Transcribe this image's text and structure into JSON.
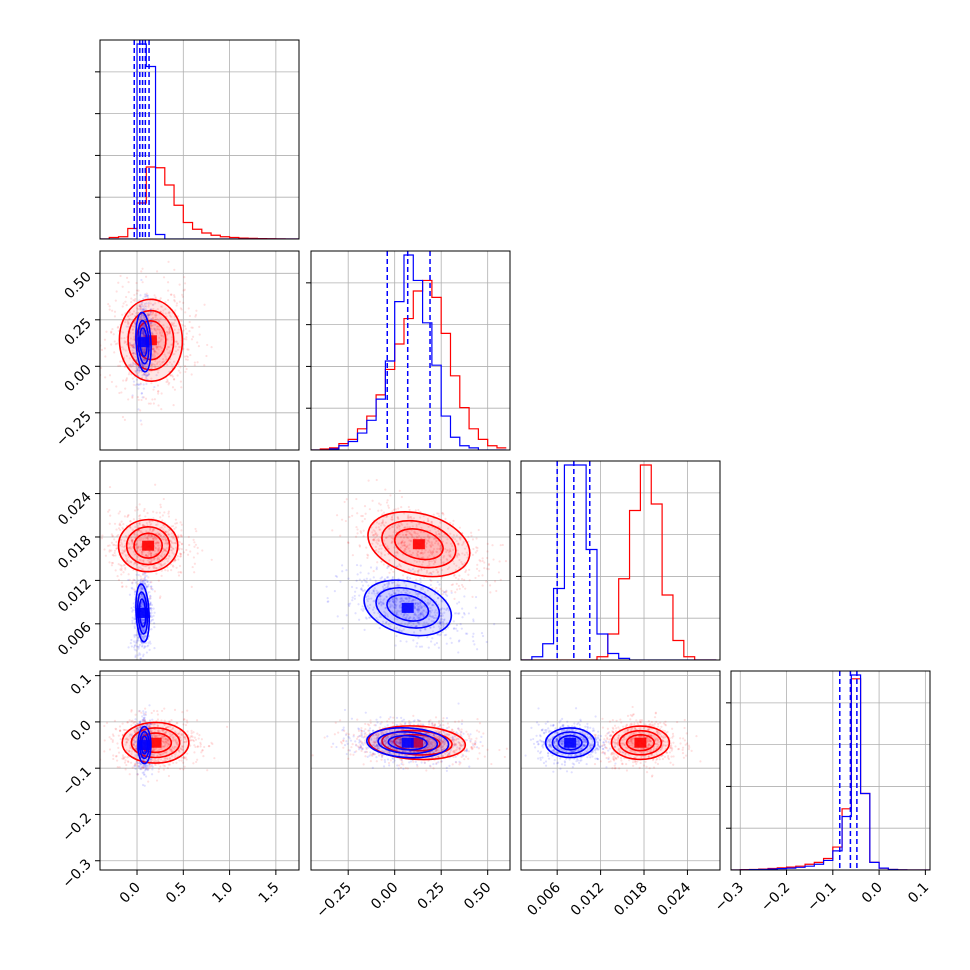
{
  "chart_data": {
    "type": "corner",
    "title": "",
    "parameters": [
      "",
      "",
      "",
      ""
    ],
    "series": [
      {
        "color": "#ff0000"
      },
      {
        "color": "#0000ff"
      }
    ],
    "axes": [
      {
        "range": [
          -0.4,
          1.75
        ],
        "ticks": [
          0.0,
          0.5,
          1.0,
          1.5
        ],
        "tick_labels": [
          "0.0",
          "0.5",
          "1.0",
          "1.5"
        ]
      },
      {
        "range": [
          -0.45,
          0.62
        ],
        "ticks": [
          -0.25,
          0.0,
          0.25,
          0.5
        ],
        "tick_labels": [
          "−0.25",
          "0.00",
          "0.25",
          "0.50"
        ]
      },
      {
        "range": [
          0.001,
          0.0285
        ],
        "ticks": [
          0.006,
          0.012,
          0.018,
          0.024
        ],
        "tick_labels": [
          "0.006",
          "0.012",
          "0.018",
          "0.024"
        ]
      },
      {
        "range": [
          -0.32,
          0.11
        ],
        "ticks": [
          -0.3,
          -0.2,
          -0.1,
          0.0,
          0.1
        ],
        "tick_labels": [
          "−0.3",
          "−0.2",
          "−0.1",
          "0.0",
          "0.1"
        ]
      }
    ],
    "marginals": [
      {
        "red": {
          "bins": [
            -0.4,
            -0.3,
            -0.2,
            -0.1,
            0.0,
            0.1,
            0.2,
            0.3,
            0.4,
            0.5,
            0.6,
            0.7,
            0.8,
            0.9,
            1.0,
            1.1,
            1.2,
            1.3,
            1.4,
            1.5,
            1.6,
            1.7,
            1.8
          ],
          "counts": [
            0,
            2,
            3,
            14,
            48,
            96,
            95,
            72,
            45,
            22,
            13,
            8,
            5,
            3,
            2,
            1.2,
            0.8,
            0.5,
            0.3,
            0.2,
            0.1,
            0
          ]
        },
        "blue": {
          "bins": [
            -0.4,
            -0.3,
            -0.2,
            -0.1,
            0.0,
            0.1,
            0.2,
            0.3,
            0.4,
            0.5,
            0.6,
            0.7,
            0.8,
            0.9,
            1.0,
            1.1,
            1.2,
            1.3,
            1.4,
            1.5,
            1.6,
            1.7,
            1.8
          ],
          "counts": [
            0,
            0,
            0,
            0,
            260,
            230,
            6,
            0,
            0,
            0,
            0,
            0,
            0,
            0,
            0,
            0,
            0,
            0,
            0,
            0,
            0,
            0
          ]
        },
        "quantiles": [
          -0.03,
          0.03,
          0.06,
          0.09,
          0.13
        ]
      },
      {
        "red": {
          "bins": [
            -0.45,
            -0.4,
            -0.35,
            -0.3,
            -0.25,
            -0.2,
            -0.15,
            -0.1,
            -0.05,
            0.0,
            0.05,
            0.1,
            0.15,
            0.2,
            0.25,
            0.3,
            0.35,
            0.4,
            0.45,
            0.5,
            0.55,
            0.6
          ],
          "counts": [
            0,
            0.5,
            1,
            3,
            5,
            10,
            16,
            26,
            38,
            50,
            62,
            75,
            80,
            72,
            55,
            35,
            20,
            10,
            5,
            2,
            1
          ]
        },
        "blue": {
          "bins": [
            -0.45,
            -0.4,
            -0.35,
            -0.3,
            -0.25,
            -0.2,
            -0.15,
            -0.1,
            -0.05,
            0.0,
            0.05,
            0.1,
            0.15,
            0.2,
            0.25,
            0.3,
            0.35,
            0.4,
            0.45,
            0.5,
            0.55,
            0.6
          ],
          "counts": [
            0,
            0,
            0.5,
            2,
            4,
            8,
            14,
            24,
            42,
            70,
            92,
            80,
            60,
            40,
            16,
            6,
            2,
            1,
            0,
            0,
            0
          ]
        },
        "quantiles": [
          -0.04,
          0.07,
          0.19
        ]
      },
      {
        "red": {
          "bins": [
            0.001,
            0.0025,
            0.004,
            0.0055,
            0.007,
            0.0085,
            0.01,
            0.0115,
            0.013,
            0.0145,
            0.016,
            0.0175,
            0.019,
            0.0205,
            0.022,
            0.0235,
            0.025,
            0.0265,
            0.028
          ],
          "counts": [
            0,
            0,
            0,
            0,
            0,
            0,
            0,
            1,
            8,
            25,
            46,
            60,
            48,
            20,
            6,
            1,
            0,
            0
          ]
        },
        "blue": {
          "bins": [
            0.001,
            0.0025,
            0.004,
            0.0055,
            0.007,
            0.0085,
            0.01,
            0.0115,
            0.013,
            0.0145,
            0.016,
            0.0175,
            0.019,
            0.0205,
            0.022,
            0.0235,
            0.025,
            0.0265,
            0.028
          ],
          "counts": [
            0,
            1,
            5,
            22,
            60,
            60,
            34,
            8,
            2,
            0.5,
            0,
            0,
            0,
            0,
            0,
            0,
            0,
            0
          ]
        },
        "quantiles": [
          0.006,
          0.0083,
          0.0105
        ]
      },
      {
        "red": {
          "bins": [
            -0.32,
            -0.3,
            -0.28,
            -0.26,
            -0.24,
            -0.22,
            -0.2,
            -0.18,
            -0.16,
            -0.14,
            -0.12,
            -0.1,
            -0.08,
            -0.06,
            -0.04,
            -0.02,
            0.0,
            0.02,
            0.04,
            0.06,
            0.08,
            0.1,
            0.11
          ],
          "counts": [
            0,
            0.2,
            0.3,
            0.5,
            0.8,
            1.1,
            1.5,
            2,
            3,
            4,
            6,
            12,
            32,
            100,
            40,
            4,
            1,
            0.3,
            0.1,
            0,
            0,
            0
          ]
        },
        "blue": {
          "bins": [
            -0.32,
            -0.3,
            -0.28,
            -0.26,
            -0.24,
            -0.22,
            -0.2,
            -0.18,
            -0.16,
            -0.14,
            -0.12,
            -0.1,
            -0.08,
            -0.06,
            -0.04,
            -0.02,
            0.0,
            0.02,
            0.04,
            0.06,
            0.08,
            0.1,
            0.11
          ],
          "counts": [
            0,
            0.1,
            0.2,
            0.3,
            0.5,
            0.7,
            1,
            1.4,
            2,
            3,
            5,
            10,
            28,
            102,
            40,
            4,
            1,
            0.3,
            0.1,
            0,
            0,
            0
          ]
        },
        "quantiles": [
          -0.085,
          -0.062,
          -0.048
        ]
      }
    ],
    "joints": [
      {
        "row": 1,
        "col": 0,
        "red": {
          "center": [
            0.15,
            0.14
          ],
          "spread": [
            0.17,
            0.11
          ],
          "rho": 0.05
        },
        "blue": {
          "center": [
            0.07,
            0.13
          ],
          "spread": [
            0.04,
            0.08
          ],
          "rho": 0.1
        }
      },
      {
        "row": 2,
        "col": 0,
        "red": {
          "center": [
            0.12,
            0.0168
          ],
          "spread": [
            0.16,
            0.0018
          ],
          "rho": 0.05
        },
        "blue": {
          "center": [
            0.06,
            0.0075
          ],
          "spread": [
            0.035,
            0.002
          ],
          "rho": 0.1
        }
      },
      {
        "row": 2,
        "col": 1,
        "red": {
          "center": [
            0.13,
            0.017
          ],
          "spread": [
            0.14,
            0.0021
          ],
          "rho": -0.5
        },
        "blue": {
          "center": [
            0.07,
            0.0082
          ],
          "spread": [
            0.12,
            0.0018
          ],
          "rho": -0.5
        }
      },
      {
        "row": 3,
        "col": 0,
        "red": {
          "center": [
            0.2,
            -0.045
          ],
          "spread": [
            0.18,
            0.022
          ],
          "rho": 0.0
        },
        "blue": {
          "center": [
            0.08,
            -0.05
          ],
          "spread": [
            0.035,
            0.02
          ],
          "rho": 0.0
        }
      },
      {
        "row": 3,
        "col": 1,
        "red": {
          "center": [
            0.12,
            -0.045
          ],
          "spread": [
            0.13,
            0.018
          ],
          "rho": -0.1
        },
        "blue": {
          "center": [
            0.07,
            -0.045
          ],
          "spread": [
            0.11,
            0.016
          ],
          "rho": -0.1
        }
      },
      {
        "row": 3,
        "col": 2,
        "red": {
          "center": [
            0.0175,
            -0.045
          ],
          "spread": [
            0.002,
            0.018
          ],
          "rho": 0.0
        },
        "blue": {
          "center": [
            0.0078,
            -0.045
          ],
          "spread": [
            0.0017,
            0.016
          ],
          "rho": 0.0
        }
      }
    ]
  }
}
